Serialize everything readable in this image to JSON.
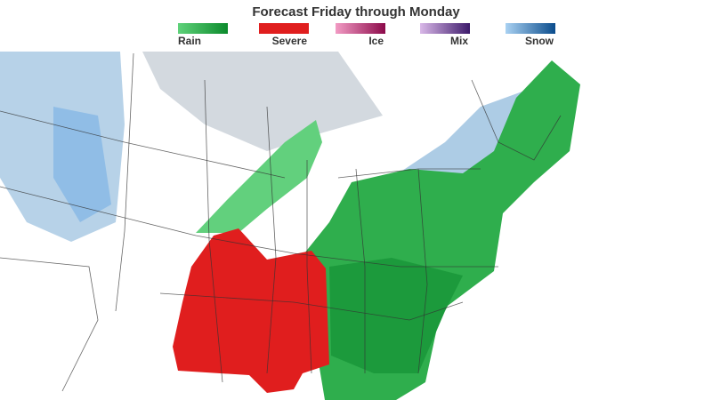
{
  "header": {
    "title": "Forecast Friday through Monday"
  },
  "legend": [
    {
      "label": "Rain",
      "colors": [
        "#5fd27a",
        "#0c8a2c"
      ]
    },
    {
      "label": "Severe",
      "colors": [
        "#e01e1e",
        "#e01e1e"
      ]
    },
    {
      "label": "Ice",
      "colors": [
        "#f29bc4",
        "#8c0a4a"
      ]
    },
    {
      "label": "Mix",
      "colors": [
        "#d9b8e8",
        "#3d1a6b"
      ]
    },
    {
      "label": "Snow",
      "colors": [
        "#a9d1f2",
        "#0a4c8c"
      ]
    }
  ]
}
